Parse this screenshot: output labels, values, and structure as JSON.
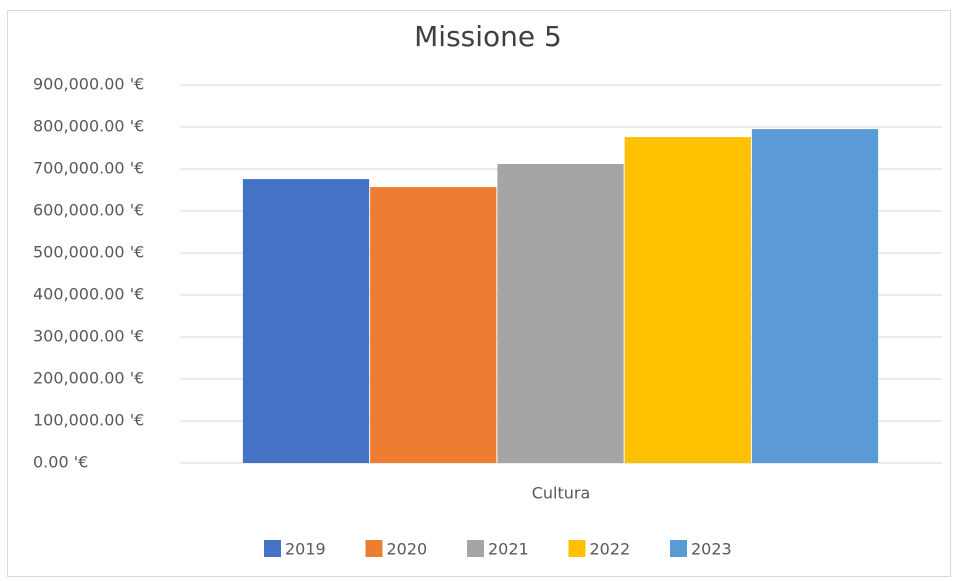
{
  "chart_data": {
    "type": "bar",
    "title": "Missione 5",
    "categories": [
      "Cultura"
    ],
    "series": [
      {
        "name": "2019",
        "color": "#4472c4",
        "values": [
          676000
        ]
      },
      {
        "name": "2020",
        "color": "#ed7d31",
        "values": [
          657000
        ]
      },
      {
        "name": "2021",
        "color": "#a5a5a5",
        "values": [
          712000
        ]
      },
      {
        "name": "2022",
        "color": "#ffc000",
        "values": [
          776000
        ]
      },
      {
        "name": "2023",
        "color": "#5b9bd5",
        "values": [
          795000
        ]
      }
    ],
    "ylim": [
      0,
      900000
    ],
    "yticks": [
      {
        "value": 0,
        "label": "0.00 '€"
      },
      {
        "value": 100000,
        "label": "100,000.00 '€"
      },
      {
        "value": 200000,
        "label": "200,000.00 '€"
      },
      {
        "value": 300000,
        "label": "300,000.00 '€"
      },
      {
        "value": 400000,
        "label": "400,000.00 '€"
      },
      {
        "value": 500000,
        "label": "500,000.00 '€"
      },
      {
        "value": 600000,
        "label": "600,000.00 '€"
      },
      {
        "value": 700000,
        "label": "700,000.00 '€"
      },
      {
        "value": 800000,
        "label": "800,000.00 '€"
      },
      {
        "value": 900000,
        "label": "900,000.00 '€"
      }
    ],
    "grid": true,
    "legend": "bottom"
  }
}
